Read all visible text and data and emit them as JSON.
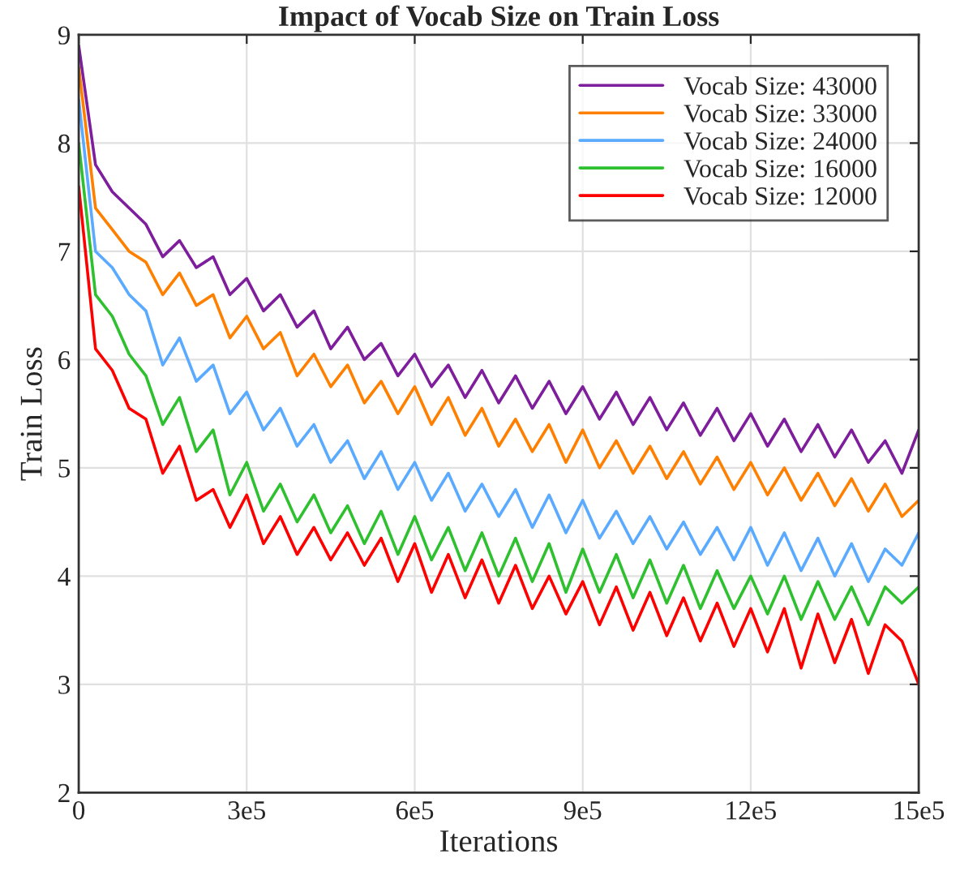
{
  "chart_data": {
    "type": "line",
    "title": "Impact of Vocab Size on Train Loss",
    "xlabel": "Iterations",
    "ylabel": "Train Loss",
    "x": [
      0,
      30000,
      60000,
      90000,
      120000,
      150000,
      180000,
      210000,
      240000,
      270000,
      300000,
      330000,
      360000,
      390000,
      420000,
      450000,
      480000,
      510000,
      540000,
      570000,
      600000,
      630000,
      660000,
      690000,
      720000,
      750000,
      780000,
      810000,
      840000,
      870000,
      900000,
      930000,
      960000,
      990000,
      1020000,
      1050000,
      1080000,
      1110000,
      1140000,
      1170000,
      1200000,
      1230000,
      1260000,
      1290000,
      1320000,
      1350000,
      1380000,
      1410000,
      1440000,
      1470000,
      1500000
    ],
    "series": [
      {
        "name": "Vocab Size: 43000",
        "color": "#7e1e9c",
        "values": [
          8.9,
          7.8,
          7.55,
          7.4,
          7.25,
          6.95,
          7.1,
          6.85,
          6.95,
          6.6,
          6.75,
          6.45,
          6.6,
          6.3,
          6.45,
          6.1,
          6.3,
          6.0,
          6.15,
          5.85,
          6.05,
          5.75,
          5.95,
          5.65,
          5.9,
          5.6,
          5.85,
          5.55,
          5.8,
          5.5,
          5.75,
          5.45,
          5.7,
          5.4,
          5.65,
          5.35,
          5.6,
          5.3,
          5.55,
          5.25,
          5.5,
          5.2,
          5.45,
          5.15,
          5.4,
          5.1,
          5.35,
          5.05,
          5.25,
          4.95,
          5.35
        ]
      },
      {
        "name": "Vocab Size: 33000",
        "color": "#ff8000",
        "values": [
          8.7,
          7.4,
          7.2,
          7.0,
          6.9,
          6.6,
          6.8,
          6.5,
          6.6,
          6.2,
          6.4,
          6.1,
          6.25,
          5.85,
          6.05,
          5.75,
          5.95,
          5.6,
          5.8,
          5.5,
          5.75,
          5.4,
          5.65,
          5.3,
          5.55,
          5.2,
          5.45,
          5.15,
          5.4,
          5.05,
          5.35,
          5.0,
          5.25,
          4.95,
          5.2,
          4.9,
          5.15,
          4.85,
          5.1,
          4.8,
          5.05,
          4.75,
          5.0,
          4.7,
          4.95,
          4.65,
          4.9,
          4.6,
          4.85,
          4.55,
          4.7
        ]
      },
      {
        "name": "Vocab Size: 24000",
        "color": "#5aaaff",
        "values": [
          8.4,
          7.0,
          6.85,
          6.6,
          6.45,
          5.95,
          6.2,
          5.8,
          5.95,
          5.5,
          5.7,
          5.35,
          5.55,
          5.2,
          5.4,
          5.05,
          5.25,
          4.9,
          5.15,
          4.8,
          5.05,
          4.7,
          4.95,
          4.6,
          4.85,
          4.55,
          4.8,
          4.45,
          4.75,
          4.4,
          4.7,
          4.35,
          4.6,
          4.3,
          4.55,
          4.25,
          4.5,
          4.2,
          4.45,
          4.15,
          4.45,
          4.1,
          4.4,
          4.05,
          4.35,
          4.0,
          4.3,
          3.95,
          4.25,
          4.1,
          4.4
        ]
      },
      {
        "name": "Vocab Size: 16000",
        "color": "#2ec02e",
        "values": [
          8.0,
          6.6,
          6.4,
          6.05,
          5.85,
          5.4,
          5.65,
          5.15,
          5.35,
          4.75,
          5.05,
          4.6,
          4.85,
          4.5,
          4.75,
          4.4,
          4.65,
          4.3,
          4.6,
          4.2,
          4.55,
          4.15,
          4.45,
          4.05,
          4.4,
          4.0,
          4.35,
          3.95,
          4.3,
          3.85,
          4.25,
          3.85,
          4.2,
          3.8,
          4.15,
          3.75,
          4.1,
          3.7,
          4.05,
          3.7,
          4.0,
          3.65,
          4.0,
          3.6,
          3.95,
          3.6,
          3.9,
          3.55,
          3.9,
          3.75,
          3.9
        ]
      },
      {
        "name": "Vocab Size: 12000",
        "color": "#ff0000",
        "values": [
          7.6,
          6.1,
          5.9,
          5.55,
          5.45,
          4.95,
          5.2,
          4.7,
          4.8,
          4.45,
          4.75,
          4.3,
          4.55,
          4.2,
          4.45,
          4.15,
          4.4,
          4.1,
          4.35,
          3.95,
          4.3,
          3.85,
          4.2,
          3.8,
          4.15,
          3.75,
          4.1,
          3.7,
          4.0,
          3.65,
          3.95,
          3.55,
          3.9,
          3.5,
          3.85,
          3.45,
          3.8,
          3.4,
          3.75,
          3.35,
          3.7,
          3.3,
          3.7,
          3.15,
          3.65,
          3.2,
          3.6,
          3.1,
          3.55,
          3.4,
          3.0
        ]
      }
    ],
    "xlim": [
      0,
      1500000
    ],
    "xticks": [
      0,
      {
        "value": 300000,
        "label": "3e5"
      },
      {
        "value": 600000,
        "label": "6e5"
      },
      {
        "value": 900000,
        "label": "9e5"
      },
      {
        "value": 1200000,
        "label": "12e5"
      },
      {
        "value": 1500000,
        "label": "15e5"
      }
    ],
    "ylim": [
      2,
      9
    ],
    "yticks": [
      2,
      3,
      4,
      5,
      6,
      7,
      8,
      9
    ],
    "grid": true,
    "legend": "top right",
    "line_style": "solid",
    "marker": "none"
  }
}
